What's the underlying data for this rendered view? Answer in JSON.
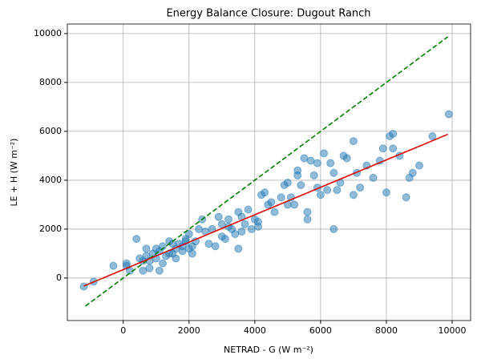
{
  "chart_data": {
    "type": "scatter",
    "title": "Energy Balance Closure: Dugout Ranch",
    "xlabel": "NETRAD - G (W m⁻²)",
    "ylabel": "LE + H (W m⁻²)",
    "color": "#1f77b4",
    "x": [
      -1200,
      -900,
      -300,
      100,
      100,
      400,
      500,
      600,
      700,
      800,
      900,
      1000,
      1100,
      1100,
      1200,
      1300,
      1400,
      1500,
      1600,
      1700,
      1800,
      1900,
      2000,
      2100,
      2200,
      2300,
      2400,
      2500,
      2600,
      2700,
      2800,
      2900,
      3000,
      3100,
      3200,
      3300,
      3400,
      3500,
      3500,
      3600,
      3700,
      3800,
      3900,
      4000,
      4100,
      4200,
      4300,
      4400,
      4600,
      4800,
      4900,
      5000,
      5100,
      5200,
      5300,
      5400,
      5500,
      5600,
      5600,
      5700,
      5800,
      5900,
      6000,
      6100,
      6200,
      6300,
      6400,
      6400,
      6600,
      6700,
      6800,
      7000,
      7000,
      7200,
      7400,
      7600,
      7800,
      7900,
      8000,
      8100,
      8200,
      8200,
      8400,
      8600,
      8700,
      8800,
      9000,
      9400,
      9900,
      200,
      600,
      800,
      1000,
      1200,
      1400,
      1600,
      1800,
      2000,
      700,
      1500,
      1900,
      2100,
      5300,
      5000,
      4500,
      3000,
      3200,
      3600,
      6500,
      7100,
      5900,
      4100
    ],
    "y": [
      -350,
      -150,
      500,
      600,
      500,
      1600,
      800,
      700,
      900,
      700,
      1000,
      1200,
      300,
      1100,
      1300,
      900,
      1500,
      1000,
      1200,
      1400,
      1100,
      1600,
      1800,
      1300,
      1500,
      2000,
      2400,
      1900,
      1400,
      2000,
      1300,
      2500,
      2200,
      1600,
      2400,
      2000,
      1800,
      2700,
      1200,
      2500,
      2200,
      2800,
      2000,
      2400,
      2300,
      3400,
      3500,
      3000,
      2700,
      3300,
      3800,
      3900,
      3300,
      3000,
      4400,
      3800,
      4900,
      2700,
      2400,
      4800,
      4200,
      4700,
      3400,
      5100,
      3600,
      4700,
      2000,
      4300,
      3900,
      5000,
      4900,
      5600,
      3400,
      3700,
      4600,
      4100,
      4800,
      5300,
      3500,
      5800,
      5900,
      5300,
      5000,
      3300,
      4100,
      4300,
      4600,
      5800,
      6700,
      300,
      300,
      400,
      800,
      600,
      1000,
      800,
      1300,
      1200,
      1200,
      1400,
      1500,
      1000,
      4200,
      3000,
      3100,
      1700,
      2100,
      1900,
      3600,
      4300,
      3700,
      2100
    ],
    "lines": [
      {
        "x": [
          -1150,
          9870
        ],
        "y": [
          -1150,
          9870
        ],
        "color": "#008000",
        "style": "dashed"
      },
      {
        "x": [
          -1200,
          9870
        ],
        "y": [
          -330,
          5880
        ],
        "color": "#e00000",
        "style": "solid"
      }
    ],
    "xlim": [
      -1700,
      10560
    ],
    "ylim": [
      -1740,
      10390
    ],
    "xticks": [
      0,
      2000,
      4000,
      6000,
      8000,
      10000
    ],
    "yticks": [
      0,
      2000,
      4000,
      6000,
      8000,
      10000
    ],
    "grid": true
  }
}
